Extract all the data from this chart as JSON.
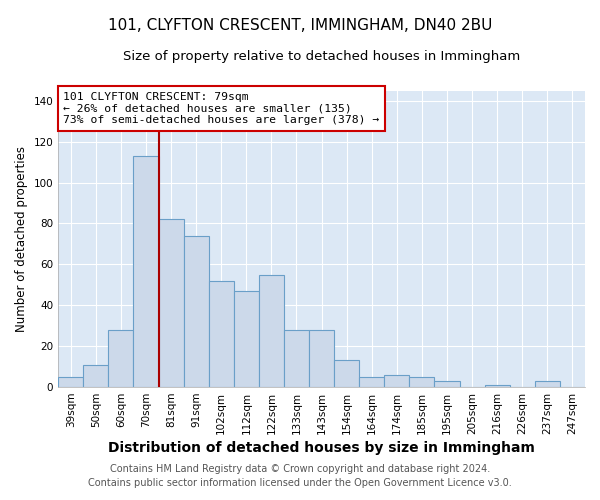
{
  "title": "101, CLYFTON CRESCENT, IMMINGHAM, DN40 2BU",
  "subtitle": "Size of property relative to detached houses in Immingham",
  "xlabel": "Distribution of detached houses by size in Immingham",
  "ylabel": "Number of detached properties",
  "categories": [
    "39sqm",
    "50sqm",
    "60sqm",
    "70sqm",
    "81sqm",
    "91sqm",
    "102sqm",
    "112sqm",
    "122sqm",
    "133sqm",
    "143sqm",
    "154sqm",
    "164sqm",
    "174sqm",
    "185sqm",
    "195sqm",
    "205sqm",
    "216sqm",
    "226sqm",
    "237sqm",
    "247sqm"
  ],
  "values": [
    5,
    11,
    28,
    113,
    82,
    74,
    52,
    47,
    55,
    28,
    28,
    13,
    5,
    6,
    5,
    3,
    0,
    1,
    0,
    3,
    0
  ],
  "bar_color": "#ccd9ea",
  "bar_edge_color": "#6a9fc8",
  "vline_x_index": 3,
  "vline_color": "#aa0000",
  "annotation_title": "101 CLYFTON CRESCENT: 79sqm",
  "annotation_line1": "← 26% of detached houses are smaller (135)",
  "annotation_line2": "73% of semi-detached houses are larger (378) →",
  "annotation_box_edge": "#cc0000",
  "ylim": [
    0,
    145
  ],
  "yticks": [
    0,
    20,
    40,
    60,
    80,
    100,
    120,
    140
  ],
  "footer1": "Contains HM Land Registry data © Crown copyright and database right 2024.",
  "footer2": "Contains public sector information licensed under the Open Government Licence v3.0.",
  "fig_background": "#ffffff",
  "plot_background": "#dce8f5",
  "grid_color": "#ffffff",
  "title_fontsize": 11,
  "subtitle_fontsize": 9.5,
  "xlabel_fontsize": 10,
  "ylabel_fontsize": 8.5,
  "tick_fontsize": 7.5,
  "footer_fontsize": 7.0
}
